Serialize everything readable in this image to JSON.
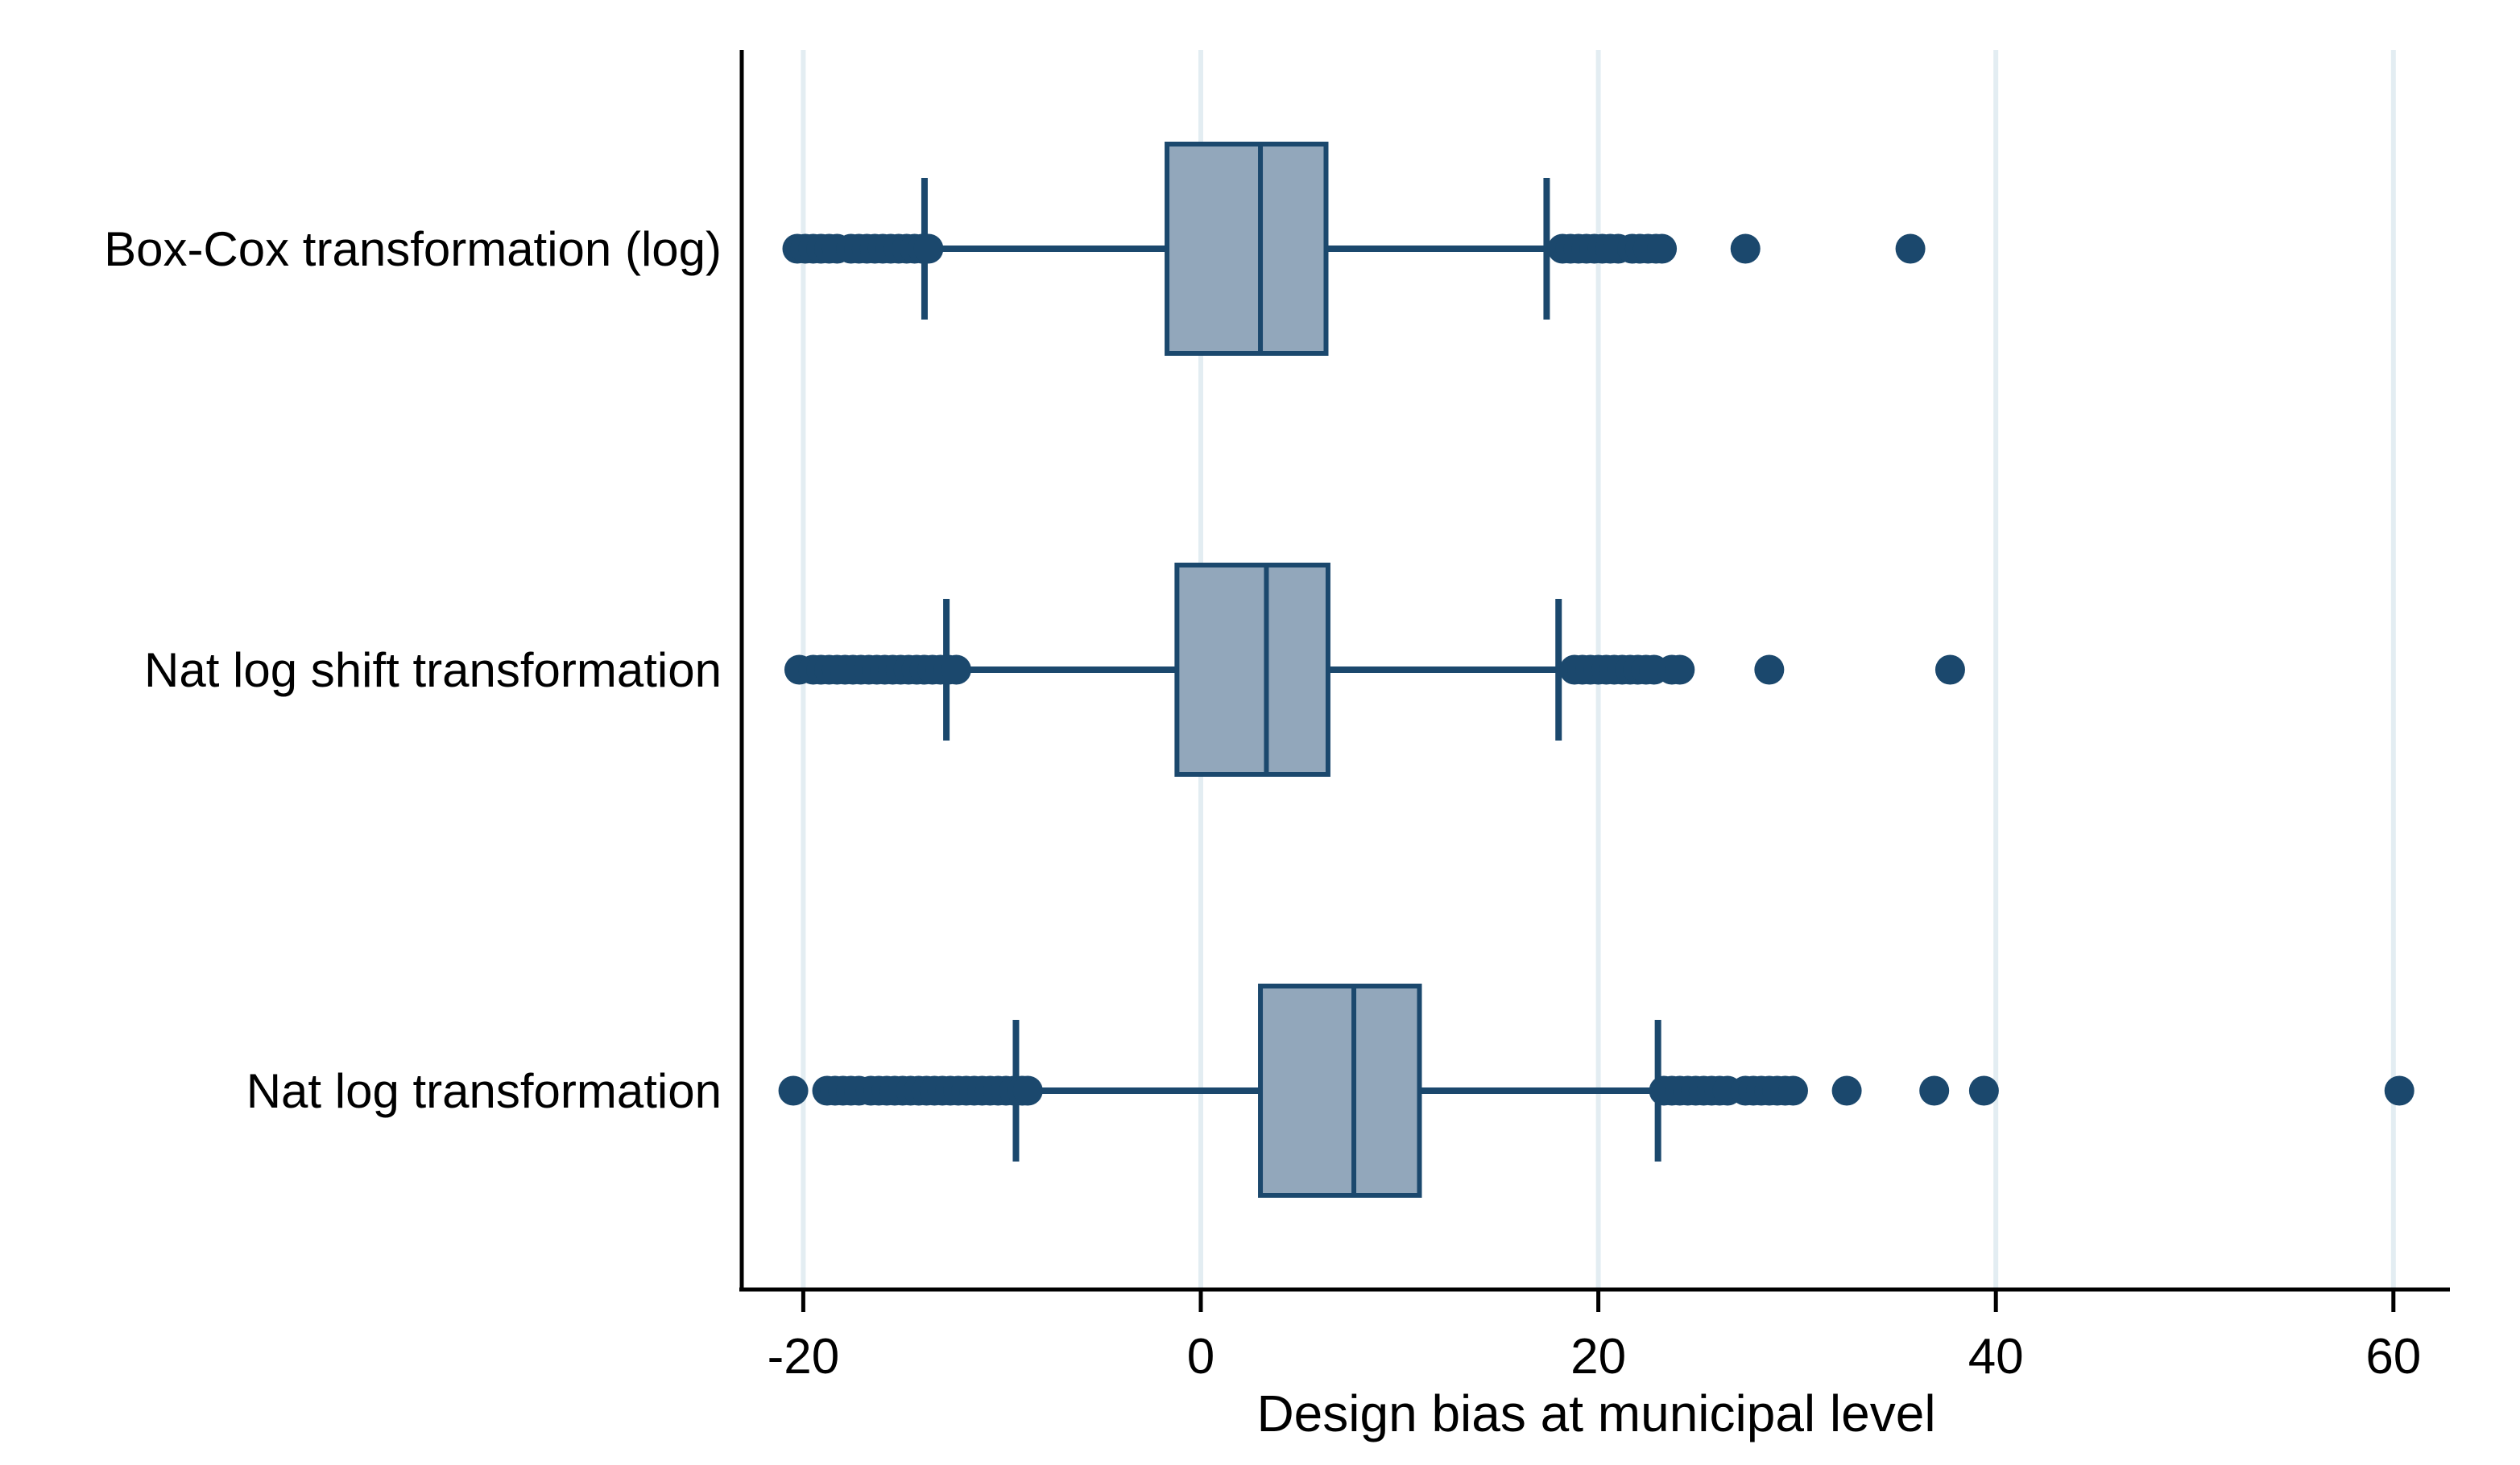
{
  "figure": {
    "background": "#ffffff"
  },
  "chart_data": {
    "type": "boxplot",
    "orientation": "horizontal",
    "title": "",
    "xlabel": "Design bias at municipal level",
    "x_ticks": [
      -20,
      0,
      20,
      40,
      60
    ],
    "xlim": [
      -23,
      63
    ],
    "grid": "vertical-light",
    "legend": "none",
    "colors": {
      "box_fill": "#92a7bb",
      "box_stroke": "#1b486d",
      "whisker": "#1b486d",
      "outlier": "#1b486d",
      "gridline": "#e3edf2",
      "axis": "#000000",
      "text": "#000000"
    },
    "series": [
      {
        "label": "Box-Cox transformation (log)",
        "whisker_low": -13.9,
        "q1": -1.7,
        "median": 3.0,
        "q3": 6.3,
        "whisker_high": 17.4,
        "outliers": [
          -20.3,
          -19.9,
          -19.5,
          -19.1,
          -18.7,
          -18.3,
          -17.6,
          -17.2,
          -16.8,
          -16.4,
          -16.0,
          -15.6,
          -15.2,
          -14.8,
          -14.4,
          -14.0,
          -13.7,
          18.2,
          18.6,
          19.0,
          19.4,
          19.8,
          20.2,
          20.6,
          21.0,
          21.7,
          22.1,
          22.5,
          22.9,
          23.2,
          27.4,
          35.7
        ]
      },
      {
        "label": "Nat log shift transformation",
        "whisker_low": -12.8,
        "q1": -1.2,
        "median": 3.3,
        "q3": 6.4,
        "whisker_high": 18.0,
        "outliers": [
          -20.2,
          -19.5,
          -19.1,
          -18.7,
          -18.3,
          -17.9,
          -17.5,
          -17.1,
          -16.7,
          -16.3,
          -15.9,
          -15.5,
          -15.1,
          -14.7,
          -14.3,
          -13.9,
          -13.5,
          -13.1,
          -12.7,
          -12.3,
          18.8,
          19.2,
          19.6,
          20.0,
          20.4,
          20.8,
          21.2,
          21.6,
          22.0,
          22.4,
          22.8,
          23.7,
          24.1,
          28.6,
          37.7
        ]
      },
      {
        "label": "Nat log transformation",
        "whisker_low": -9.3,
        "q1": 3.0,
        "median": 7.7,
        "q3": 11.0,
        "whisker_high": 23.0,
        "outliers": [
          -20.5,
          -18.8,
          -18.4,
          -18.0,
          -17.6,
          -17.2,
          -16.6,
          -16.2,
          -15.8,
          -15.4,
          -15.0,
          -14.6,
          -14.2,
          -13.8,
          -13.4,
          -13.0,
          -12.6,
          -12.2,
          -11.8,
          -11.4,
          -11.0,
          -10.6,
          -10.2,
          -9.8,
          -9.4,
          -9.0,
          -8.7,
          23.3,
          23.7,
          24.1,
          24.5,
          24.9,
          25.3,
          25.7,
          26.1,
          26.5,
          27.4,
          27.8,
          28.2,
          28.6,
          29.0,
          29.4,
          29.8,
          32.5,
          36.9,
          39.4,
          60.3
        ]
      }
    ]
  }
}
